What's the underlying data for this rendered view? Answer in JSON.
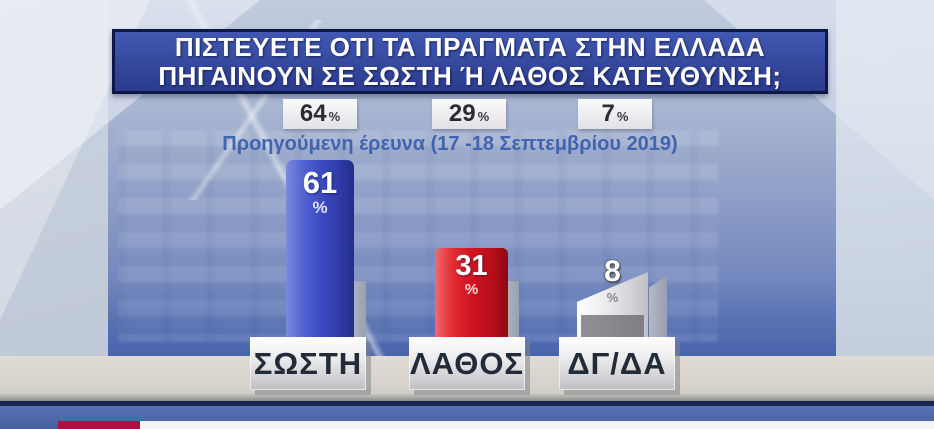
{
  "app": {
    "type": "tv-poll-graphic",
    "language": "el"
  },
  "header": {
    "title_line1": "ΠΙΣΤΕΥΕΤΕ ΟΤΙ ΤΑ ΠΡΑΓΜΑΤΑ ΣΤΗΝ ΕΛΛΑΔΑ",
    "title_line2": "ΠΗΓΑΙΝΟΥΝ ΣΕ ΣΩΣΤΗ Ή ΛΑΘΟΣ ΚΑΤΕΥΘΥΝΣΗ;"
  },
  "previous": {
    "caption": "Προηγούμενη έρευνα (17 -18 Σεπτεμβρίου 2019)",
    "values": [
      {
        "value": "64",
        "unit": "%"
      },
      {
        "value": "29",
        "unit": "%"
      },
      {
        "value": "7",
        "unit": "%"
      }
    ]
  },
  "bars": [
    {
      "label": "ΣΩΣΤΗ",
      "value": "61",
      "unit": "%",
      "color": "#3a49c0"
    },
    {
      "label": "ΛΑΘΟΣ",
      "value": "31",
      "unit": "%",
      "color": "#cd1220"
    },
    {
      "label": "ΔΓ/ΔΑ",
      "value": "8",
      "unit": "%",
      "color": "#e9e9ec"
    }
  ],
  "chart_data": {
    "type": "bar",
    "title": "ΠΙΣΤΕΥΕΤΕ ΟΤΙ ΤΑ ΠΡΑΓΜΑΤΑ ΣΤΗΝ ΕΛΛΑΔΑ ΠΗΓΑΙΝΟΥΝ ΣΕ ΣΩΣΤΗ Ή ΛΑΘΟΣ ΚΑΤΕΥΘΥΝΣΗ;",
    "subtitle": "Προηγούμενη έρευνα (17 -18 Σεπτεμβρίου 2019)",
    "categories": [
      "ΣΩΣΤΗ",
      "ΛΑΘΟΣ",
      "ΔΓ/ΔΑ"
    ],
    "unit": "%",
    "series": [
      {
        "name": "current",
        "values": [
          61,
          31,
          8
        ]
      },
      {
        "name": "previous",
        "values": [
          64,
          29,
          7
        ]
      }
    ],
    "bar_colors": [
      "#3a49c0",
      "#cd1220",
      "#e9e9ec"
    ],
    "legend_position": "none",
    "grid": false
  }
}
